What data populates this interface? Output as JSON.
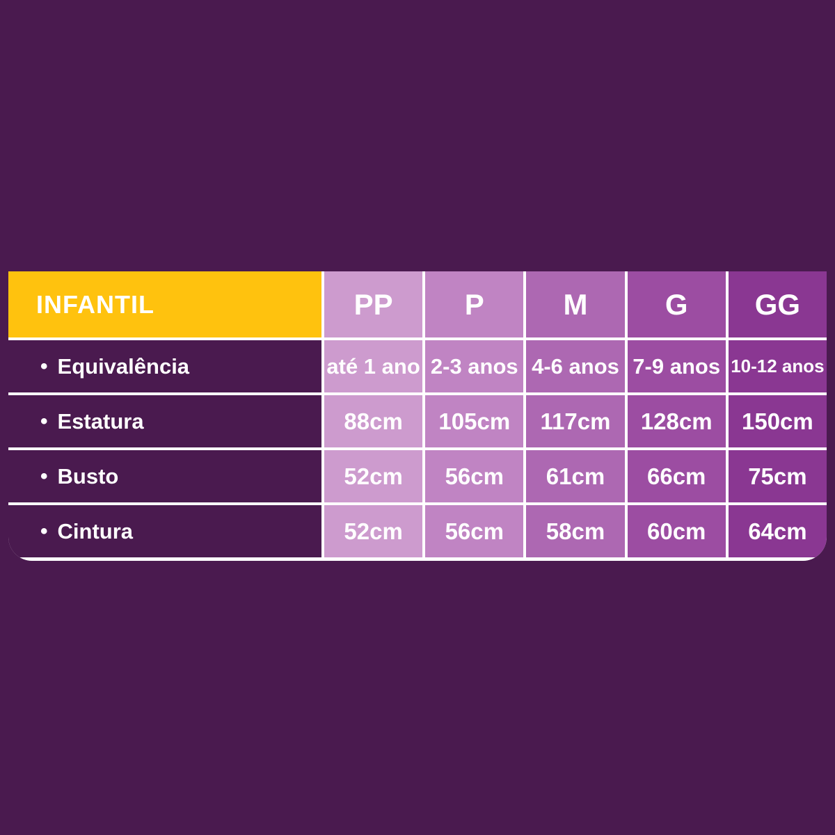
{
  "colors": {
    "page-bg": "#4a1a4f",
    "title-bg": "#ffc20e",
    "grid-line": "#ffffff",
    "label-col-bg": "#4a1a4f",
    "col-pp": "#cd9bce",
    "col-p": "#c084c3",
    "col-m": "#ad68b2",
    "col-g": "#9c4da2",
    "col-gg": "#8a3792",
    "text": "#ffffff"
  },
  "chart_data": {
    "type": "table",
    "title": "INFANTIL",
    "bullet": "•",
    "columns": [
      "PP",
      "P",
      "M",
      "G",
      "GG"
    ],
    "rows": [
      {
        "label": "Equivalência",
        "values": [
          "até 1 ano",
          "2-3 anos",
          "4-6 anos",
          "7-9 anos",
          "10-12 anos"
        ]
      },
      {
        "label": "Estatura",
        "values": [
          "88cm",
          "105cm",
          "117cm",
          "128cm",
          "150cm"
        ]
      },
      {
        "label": "Busto",
        "values": [
          "52cm",
          "56cm",
          "61cm",
          "66cm",
          "75cm"
        ]
      },
      {
        "label": "Cintura",
        "values": [
          "52cm",
          "56cm",
          "58cm",
          "60cm",
          "64cm"
        ]
      }
    ]
  }
}
